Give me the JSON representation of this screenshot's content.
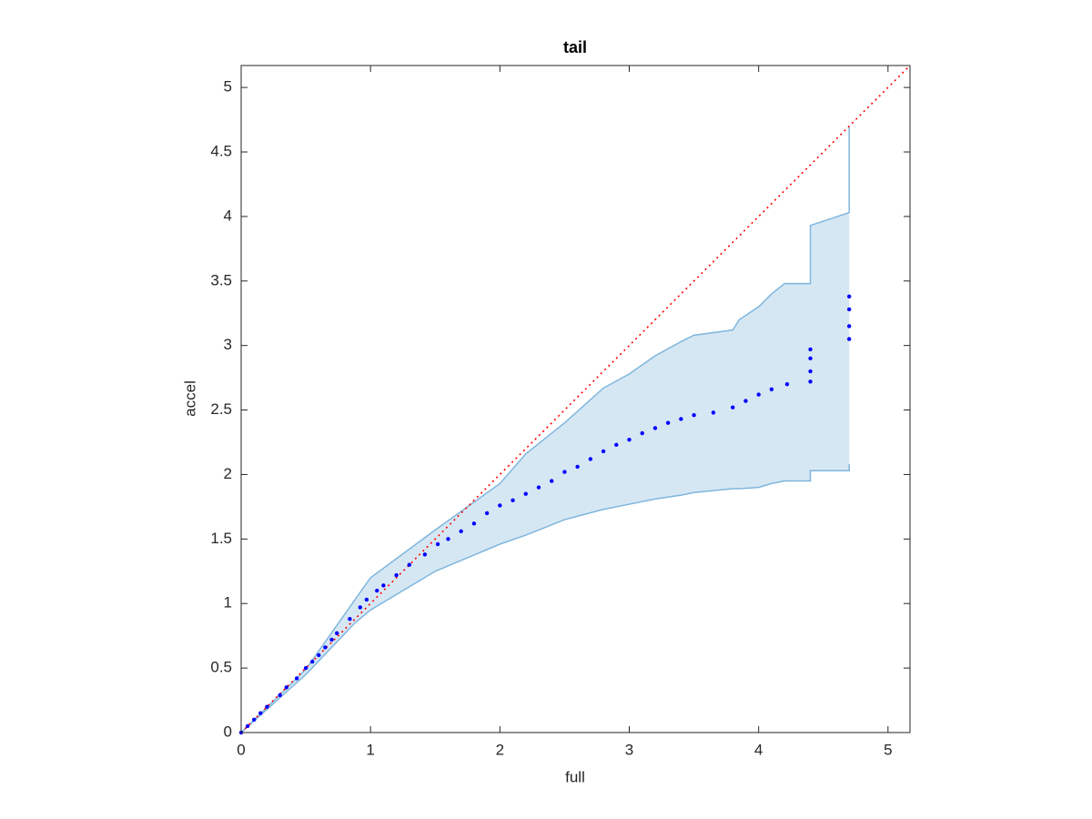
{
  "chart_data": {
    "type": "scatter",
    "title": "tail",
    "x_label": "full",
    "y_label": "accel",
    "xlim": [
      0,
      5.17
    ],
    "ylim": [
      0,
      5.17
    ],
    "xticks": [
      0,
      1,
      2,
      3,
      4,
      5
    ],
    "yticks": [
      0,
      0.5,
      1,
      1.5,
      2,
      2.5,
      3,
      3.5,
      4,
      4.5,
      5
    ],
    "grid": false,
    "band": {
      "color": "#7fb6dd",
      "fill": "#d6e7f4",
      "x": [
        0,
        0.5,
        0.88,
        1.0,
        1.5,
        2.0,
        2.2,
        2.5,
        2.8,
        3.0,
        3.2,
        3.4,
        3.5,
        3.8,
        3.85,
        4.0,
        4.1,
        4.2,
        4.4,
        4.4,
        4.7,
        4.7
      ],
      "upper": [
        0,
        0.49,
        1.03,
        1.2,
        1.57,
        1.93,
        2.16,
        2.4,
        2.67,
        2.78,
        2.92,
        3.03,
        3.08,
        3.12,
        3.2,
        3.3,
        3.4,
        3.48,
        3.48,
        3.93,
        4.03,
        4.69
      ],
      "lower": [
        0,
        0.45,
        0.85,
        0.95,
        1.25,
        1.46,
        1.53,
        1.65,
        1.73,
        1.77,
        1.81,
        1.84,
        1.86,
        1.89,
        1.89,
        1.9,
        1.93,
        1.95,
        1.95,
        2.03,
        2.03,
        2.08
      ]
    },
    "reference_line": {
      "color": "#ff0000",
      "x": [
        0,
        5.17
      ],
      "y": [
        0,
        5.17
      ]
    },
    "series": [
      {
        "color": "#0000ff",
        "x": [
          0,
          0.05,
          0.1,
          0.15,
          0.2,
          0.3,
          0.35,
          0.43,
          0.5,
          0.55,
          0.6,
          0.65,
          0.7,
          0.74,
          0.84,
          0.92,
          0.97,
          1.05,
          1.1,
          1.2,
          1.3,
          1.42,
          1.52,
          1.6,
          1.7,
          1.8,
          1.9,
          2.0,
          2.1,
          2.2,
          2.3,
          2.4,
          2.5,
          2.6,
          2.7,
          2.8,
          2.9,
          3.0,
          3.1,
          3.2,
          3.3,
          3.4,
          3.5,
          3.65,
          3.8,
          3.9,
          4.0,
          4.1,
          4.22,
          4.4,
          4.4,
          4.4,
          4.4,
          4.7,
          4.7,
          4.7,
          4.7
        ],
        "values": [
          0,
          0.05,
          0.1,
          0.15,
          0.2,
          0.29,
          0.35,
          0.42,
          0.5,
          0.55,
          0.6,
          0.66,
          0.72,
          0.77,
          0.88,
          0.97,
          1.03,
          1.1,
          1.14,
          1.22,
          1.3,
          1.38,
          1.46,
          1.5,
          1.56,
          1.62,
          1.7,
          1.76,
          1.8,
          1.85,
          1.9,
          1.95,
          2.02,
          2.06,
          2.12,
          2.18,
          2.23,
          2.27,
          2.32,
          2.36,
          2.4,
          2.43,
          2.46,
          2.48,
          2.52,
          2.57,
          2.62,
          2.66,
          2.7,
          2.72,
          2.8,
          2.9,
          2.97,
          3.05,
          3.15,
          3.28,
          3.38
        ]
      }
    ]
  }
}
